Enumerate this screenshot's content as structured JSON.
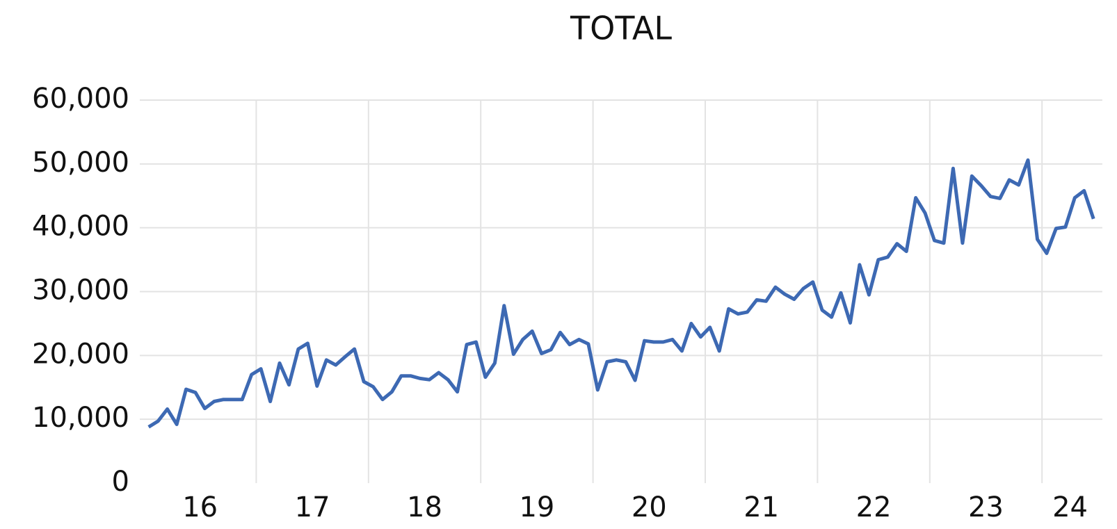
{
  "chart_data": {
    "type": "line",
    "title": "TOTAL",
    "categories": [
      "16",
      "16",
      "16",
      "16",
      "16",
      "16",
      "16",
      "16",
      "16",
      "16",
      "16",
      "16",
      "17",
      "17",
      "17",
      "17",
      "17",
      "17",
      "17",
      "17",
      "17",
      "17",
      "17",
      "17",
      "18",
      "18",
      "18",
      "18",
      "18",
      "18",
      "18",
      "18",
      "18",
      "18",
      "18",
      "18",
      "19",
      "19",
      "19",
      "19",
      "19",
      "19",
      "19",
      "19",
      "19",
      "19",
      "19",
      "19",
      "20",
      "20",
      "20",
      "20",
      "20",
      "20",
      "20",
      "20",
      "20",
      "20",
      "20",
      "20",
      "21",
      "21",
      "21",
      "21",
      "21",
      "21",
      "21",
      "21",
      "21",
      "21",
      "21",
      "21",
      "22",
      "22",
      "22",
      "22",
      "22",
      "22",
      "22",
      "22",
      "22",
      "22",
      "22",
      "22",
      "23",
      "23",
      "23",
      "23",
      "23",
      "23",
      "23",
      "23",
      "23",
      "23",
      "23",
      "23",
      "24",
      "24",
      "24",
      "24",
      "24",
      "24"
    ],
    "series": [
      {
        "name": "TOTAL",
        "color": "#3d69b3",
        "values": [
          8800,
          9700,
          11600,
          9200,
          14700,
          14200,
          11700,
          12800,
          13100,
          13100,
          13100,
          17000,
          17900,
          12800,
          18800,
          15400,
          21000,
          21900,
          15200,
          19300,
          18500,
          19800,
          21000,
          15900,
          15100,
          13100,
          14300,
          16800,
          16800,
          16400,
          16200,
          17300,
          16200,
          14300,
          21700,
          22100,
          16600,
          18800,
          27800,
          20200,
          22500,
          23800,
          20300,
          20900,
          23600,
          21700,
          22500,
          21800,
          14600,
          19000,
          19300,
          19000,
          16100,
          22300,
          22100,
          22100,
          22500,
          20700,
          25000,
          22900,
          24400,
          20700,
          27300,
          26500,
          26800,
          28700,
          28500,
          30700,
          29600,
          28800,
          30500,
          31500,
          27100,
          26000,
          29800,
          25100,
          34200,
          29500,
          35000,
          35400,
          37500,
          36300,
          44700,
          42300,
          38000,
          37600,
          49300,
          37600,
          48100,
          46600,
          44900,
          44600,
          47500,
          46700,
          50600,
          38200,
          36000,
          39900,
          40100,
          44700,
          45800,
          41400
        ]
      }
    ],
    "ylim": [
      0,
      60000
    ],
    "yticks": [
      0,
      {
        "value": 10000,
        "label": "10,000"
      },
      {
        "value": 20000,
        "label": "20,000"
      },
      {
        "value": 30000,
        "label": "30,000"
      },
      {
        "value": 40000,
        "label": "40,000"
      },
      {
        "value": 50000,
        "label": "50,000"
      },
      {
        "value": 60000,
        "label": "60,000"
      }
    ],
    "grid": true
  }
}
